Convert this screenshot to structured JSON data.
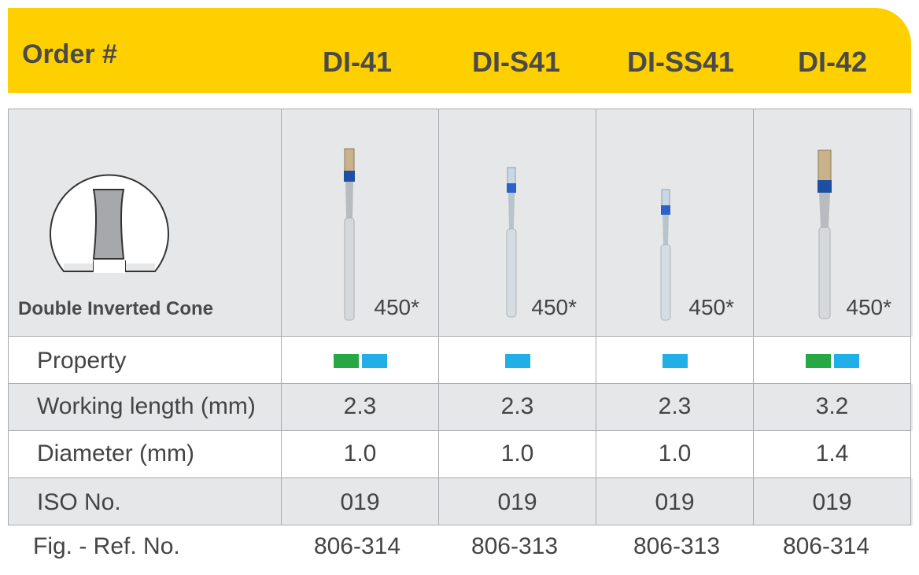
{
  "header": {
    "order_label": "Order #",
    "codes": [
      "DI-41",
      "DI-S41",
      "DI-SS41",
      "DI-42"
    ],
    "accent_color": "#ffd000"
  },
  "shape": {
    "name": "Double Inverted Cone",
    "icon": "double-inverted-cone-icon"
  },
  "products": [
    {
      "code": "DI-41",
      "shank_number": "450*",
      "property_colors": [
        "#27a844",
        "#22aee6"
      ],
      "working_length": "2.3",
      "diameter": "1.0",
      "iso": "019",
      "ref": "806-314"
    },
    {
      "code": "DI-S41",
      "shank_number": "450*",
      "property_colors": [
        "#22aee6"
      ],
      "working_length": "2.3",
      "diameter": "1.0",
      "iso": "019",
      "ref": "806-313"
    },
    {
      "code": "DI-SS41",
      "shank_number": "450*",
      "property_colors": [
        "#22aee6"
      ],
      "working_length": "2.3",
      "diameter": "1.0",
      "iso": "019",
      "ref": "806-313"
    },
    {
      "code": "DI-42",
      "shank_number": "450*",
      "property_colors": [
        "#27a844",
        "#22aee6"
      ],
      "working_length": "3.2",
      "diameter": "1.4",
      "iso": "019",
      "ref": "806-314"
    }
  ],
  "rows": {
    "property": "Property",
    "working_length": "Working length (mm)",
    "diameter": "Diameter (mm)",
    "iso": "ISO No.",
    "ref": "Fig. - Ref. No."
  }
}
